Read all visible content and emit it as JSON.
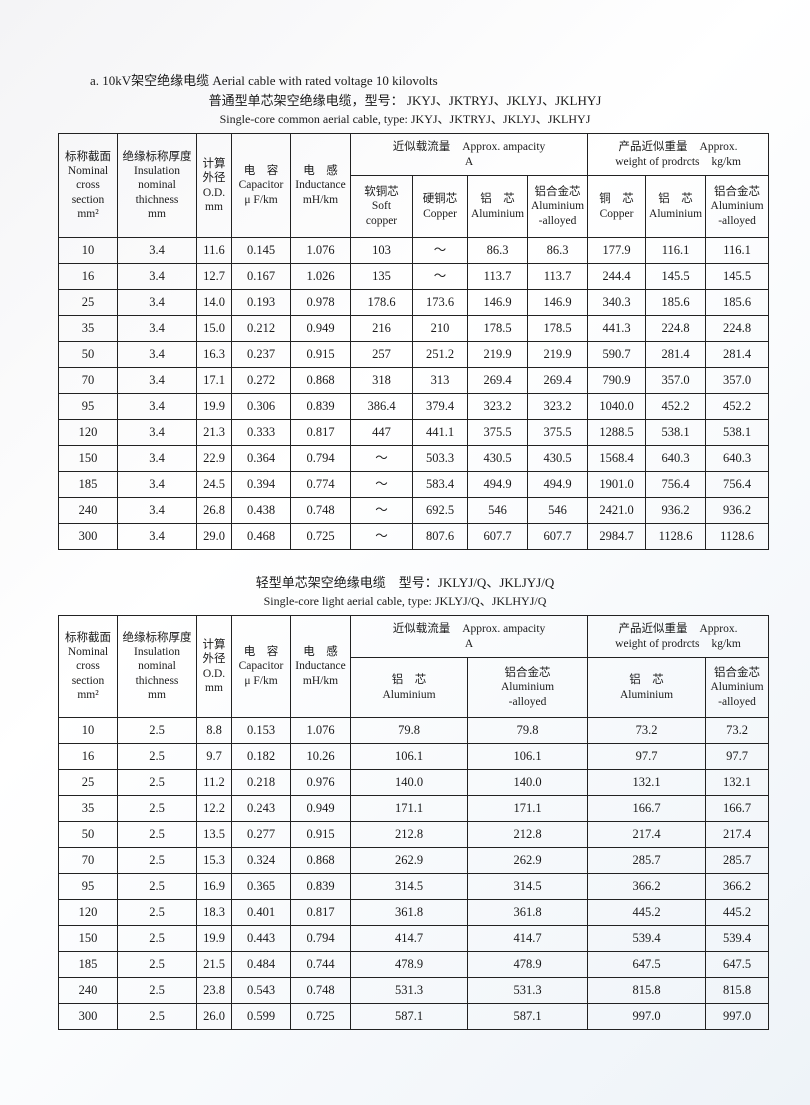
{
  "heading": "a. 10kV架空绝缘电缆  Aerial cable with rated voltage 10 kilovolts",
  "table1": {
    "title_cn": "普通型单芯架空绝缘电缆，型号： JKYJ、JKTRYJ、JKLYJ、JKLHYJ",
    "title_en": "Single-core common aerial cable, type: JKYJ、JKTRYJ、JKLYJ、JKLHYJ",
    "columns": [
      {
        "lines": [
          [
            "标称截面"
          ],
          [
            "Nominal"
          ],
          [
            "cross"
          ],
          [
            "section"
          ],
          [
            "mm²"
          ]
        ]
      },
      {
        "lines": [
          [
            "绝缘标称厚度"
          ],
          [
            "Insulation"
          ],
          [
            "nominal"
          ],
          [
            "thichness"
          ],
          [
            "mm"
          ]
        ]
      },
      {
        "lines": [
          [
            "计算"
          ],
          [
            "外径"
          ],
          [
            "O.D."
          ],
          [
            "mm"
          ]
        ]
      },
      {
        "lines": [
          [
            "电　容"
          ],
          [
            "Capacitor"
          ],
          [
            "μ F/km"
          ]
        ]
      },
      {
        "lines": [
          [
            "电　感"
          ],
          [
            "Inductance"
          ],
          [
            "mH/km"
          ]
        ]
      }
    ],
    "groups": [
      {
        "lines": [
          [
            "近似载流量",
            "Approx. ampacity"
          ],
          [
            "A"
          ]
        ]
      },
      {
        "lines": [
          [
            "产品近似重量",
            "Approx."
          ],
          [
            "weight of prodrcts",
            "kg/km"
          ]
        ]
      }
    ],
    "subcolumns": [
      {
        "lines": [
          [
            "软铜芯"
          ],
          [
            "Soft"
          ],
          [
            "copper"
          ]
        ]
      },
      {
        "lines": [
          [
            "硬铜芯"
          ],
          [
            "Copper"
          ]
        ]
      },
      {
        "lines": [
          [
            "铝　芯"
          ],
          [
            "Aluminium"
          ]
        ]
      },
      {
        "lines": [
          [
            "铝合金芯"
          ],
          [
            "Aluminium"
          ],
          [
            "-alloyed"
          ]
        ]
      },
      {
        "lines": [
          [
            "铜　芯"
          ],
          [
            "Copper"
          ]
        ]
      },
      {
        "lines": [
          [
            "铝　芯"
          ],
          [
            "Aluminium"
          ]
        ]
      },
      {
        "lines": [
          [
            "铝合金芯"
          ],
          [
            "Aluminium"
          ],
          [
            "-alloyed"
          ]
        ]
      }
    ],
    "rows": [
      [
        "10",
        "3.4",
        "11.6",
        "0.145",
        "1.076",
        "103",
        "～",
        "86.3",
        "86.3",
        "177.9",
        "116.1",
        "116.1"
      ],
      [
        "16",
        "3.4",
        "12.7",
        "0.167",
        "1.026",
        "135",
        "～",
        "113.7",
        "113.7",
        "244.4",
        "145.5",
        "145.5"
      ],
      [
        "25",
        "3.4",
        "14.0",
        "0.193",
        "0.978",
        "178.6",
        "173.6",
        "146.9",
        "146.9",
        "340.3",
        "185.6",
        "185.6"
      ],
      [
        "35",
        "3.4",
        "15.0",
        "0.212",
        "0.949",
        "216",
        "210",
        "178.5",
        "178.5",
        "441.3",
        "224.8",
        "224.8"
      ],
      [
        "50",
        "3.4",
        "16.3",
        "0.237",
        "0.915",
        "257",
        "251.2",
        "219.9",
        "219.9",
        "590.7",
        "281.4",
        "281.4"
      ],
      [
        "70",
        "3.4",
        "17.1",
        "0.272",
        "0.868",
        "318",
        "313",
        "269.4",
        "269.4",
        "790.9",
        "357.0",
        "357.0"
      ],
      [
        "95",
        "3.4",
        "19.9",
        "0.306",
        "0.839",
        "386.4",
        "379.4",
        "323.2",
        "323.2",
        "1040.0",
        "452.2",
        "452.2"
      ],
      [
        "120",
        "3.4",
        "21.3",
        "0.333",
        "0.817",
        "447",
        "441.1",
        "375.5",
        "375.5",
        "1288.5",
        "538.1",
        "538.1"
      ],
      [
        "150",
        "3.4",
        "22.9",
        "0.364",
        "0.794",
        "～",
        "503.3",
        "430.5",
        "430.5",
        "1568.4",
        "640.3",
        "640.3"
      ],
      [
        "185",
        "3.4",
        "24.5",
        "0.394",
        "0.774",
        "～",
        "583.4",
        "494.9",
        "494.9",
        "1901.0",
        "756.4",
        "756.4"
      ],
      [
        "240",
        "3.4",
        "26.8",
        "0.438",
        "0.748",
        "～",
        "692.5",
        "546",
        "546",
        "2421.0",
        "936.2",
        "936.2"
      ],
      [
        "300",
        "3.4",
        "29.0",
        "0.468",
        "0.725",
        "～",
        "807.6",
        "607.7",
        "607.7",
        "2984.7",
        "1128.6",
        "1128.6"
      ]
    ]
  },
  "table2": {
    "title_cn": "轻型单芯架空绝缘电缆　型号：JKLYJ/Q、JKLJYJ/Q",
    "title_en": "Single-core light aerial cable, type: JKLYJ/Q、JKLHYJ/Q",
    "columns": [
      {
        "lines": [
          [
            "标称截面"
          ],
          [
            "Nominal"
          ],
          [
            "cross"
          ],
          [
            "section"
          ],
          [
            "mm²"
          ]
        ]
      },
      {
        "lines": [
          [
            "绝缘标称厚度"
          ],
          [
            "Insulation"
          ],
          [
            "nominal"
          ],
          [
            "thichness"
          ],
          [
            "mm"
          ]
        ]
      },
      {
        "lines": [
          [
            "计算"
          ],
          [
            "外径"
          ],
          [
            "O.D."
          ],
          [
            "mm"
          ]
        ]
      },
      {
        "lines": [
          [
            "电　容"
          ],
          [
            "Capacitor"
          ],
          [
            "μ F/km"
          ]
        ]
      },
      {
        "lines": [
          [
            "电　感"
          ],
          [
            "Inductance"
          ],
          [
            "mH/km"
          ]
        ]
      }
    ],
    "groups": [
      {
        "lines": [
          [
            "近似载流量",
            "Approx. ampacity"
          ],
          [
            "A"
          ]
        ]
      },
      {
        "lines": [
          [
            "产品近似重量",
            "Approx."
          ],
          [
            "weight of prodrcts",
            "kg/km"
          ]
        ]
      }
    ],
    "subcolumns": [
      {
        "lines": [
          [
            "铝　芯"
          ],
          [
            "Aluminium"
          ]
        ]
      },
      {
        "lines": [
          [
            "铝合金芯"
          ],
          [
            "Aluminium"
          ],
          [
            "-alloyed"
          ]
        ]
      },
      {
        "lines": [
          [
            "铝　芯"
          ],
          [
            "Aluminium"
          ]
        ]
      },
      {
        "lines": [
          [
            "铝合金芯"
          ],
          [
            "Aluminium"
          ],
          [
            "-alloyed"
          ]
        ]
      }
    ],
    "rows": [
      [
        "10",
        "2.5",
        "8.8",
        "0.153",
        "1.076",
        "79.8",
        "79.8",
        "73.2",
        "73.2"
      ],
      [
        "16",
        "2.5",
        "9.7",
        "0.182",
        "10.26",
        "106.1",
        "106.1",
        "97.7",
        "97.7"
      ],
      [
        "25",
        "2.5",
        "11.2",
        "0.218",
        "0.976",
        "140.0",
        "140.0",
        "132.1",
        "132.1"
      ],
      [
        "35",
        "2.5",
        "12.2",
        "0.243",
        "0.949",
        "171.1",
        "171.1",
        "166.7",
        "166.7"
      ],
      [
        "50",
        "2.5",
        "13.5",
        "0.277",
        "0.915",
        "212.8",
        "212.8",
        "217.4",
        "217.4"
      ],
      [
        "70",
        "2.5",
        "15.3",
        "0.324",
        "0.868",
        "262.9",
        "262.9",
        "285.7",
        "285.7"
      ],
      [
        "95",
        "2.5",
        "16.9",
        "0.365",
        "0.839",
        "314.5",
        "314.5",
        "366.2",
        "366.2"
      ],
      [
        "120",
        "2.5",
        "18.3",
        "0.401",
        "0.817",
        "361.8",
        "361.8",
        "445.2",
        "445.2"
      ],
      [
        "150",
        "2.5",
        "19.9",
        "0.443",
        "0.794",
        "414.7",
        "414.7",
        "539.4",
        "539.4"
      ],
      [
        "185",
        "2.5",
        "21.5",
        "0.484",
        "0.744",
        "478.9",
        "478.9",
        "647.5",
        "647.5"
      ],
      [
        "240",
        "2.5",
        "23.8",
        "0.543",
        "0.748",
        "531.3",
        "531.3",
        "815.8",
        "815.8"
      ],
      [
        "300",
        "2.5",
        "26.0",
        "0.599",
        "0.725",
        "587.1",
        "587.1",
        "997.0",
        "997.0"
      ]
    ]
  }
}
